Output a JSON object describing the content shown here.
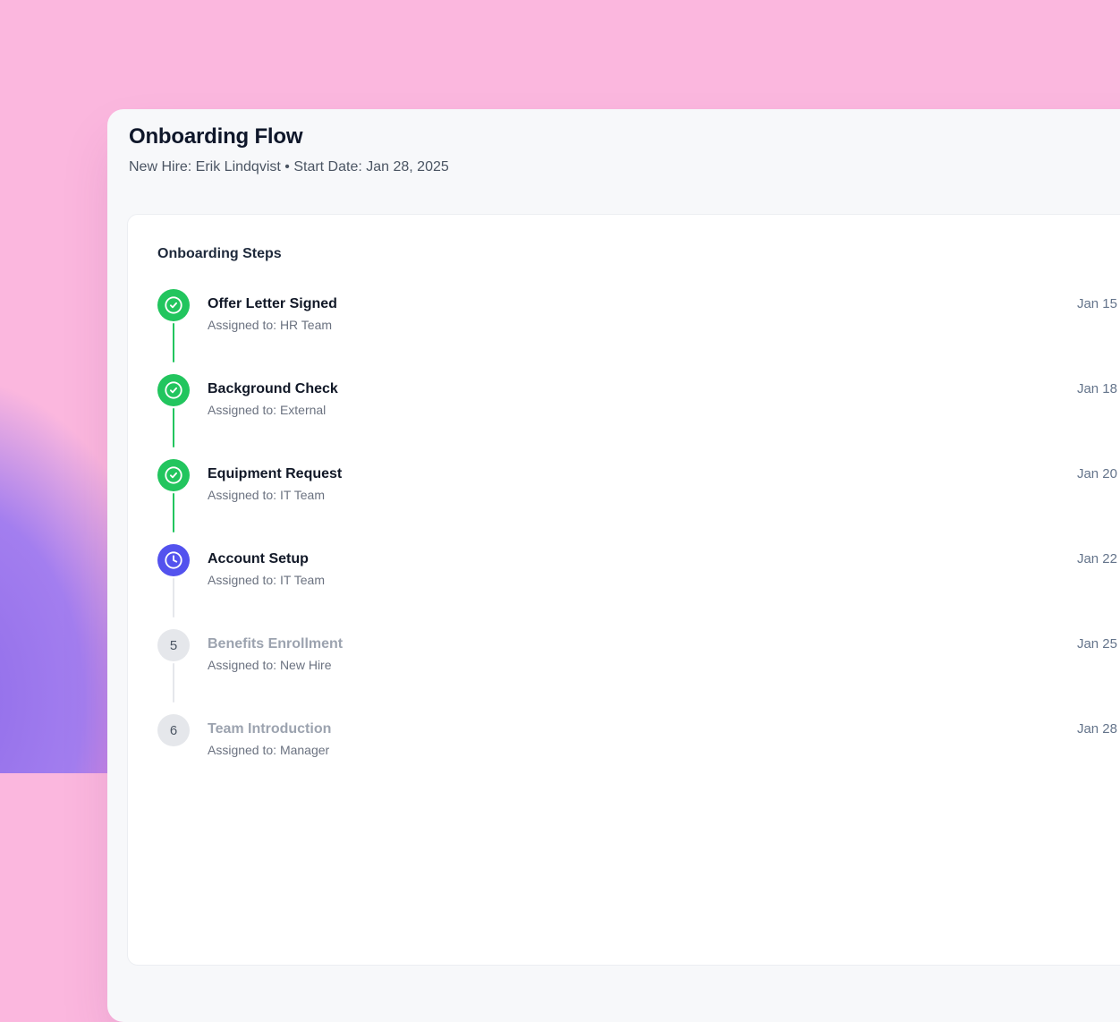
{
  "page": {
    "title": "Onboarding Flow",
    "subtitle": "New Hire: Erik Lindqvist • Start Date: Jan 28, 2025"
  },
  "card": {
    "heading": "Onboarding Steps",
    "steps": [
      {
        "title": "Offer Letter Signed",
        "assignee": "Assigned to: HR Team",
        "date": "Jan 15",
        "status": "completed"
      },
      {
        "title": "Background Check",
        "assignee": "Assigned to: External",
        "date": "Jan 18",
        "status": "completed"
      },
      {
        "title": "Equipment Request",
        "assignee": "Assigned to: IT Team",
        "date": "Jan 20",
        "status": "completed"
      },
      {
        "title": "Account Setup",
        "assignee": "Assigned to: IT Team",
        "date": "Jan 22",
        "status": "in_progress"
      },
      {
        "title": "Benefits Enrollment",
        "assignee": "Assigned to: New Hire",
        "date": "Jan 25",
        "status": "pending",
        "number": "5"
      },
      {
        "title": "Team Introduction",
        "assignee": "Assigned to: Manager",
        "date": "Jan 28",
        "status": "pending",
        "number": "6"
      }
    ]
  },
  "colors": {
    "status_completed": "#22c55e",
    "status_in_progress": "#5352ee",
    "pending_badge_bg": "#e5e7eb",
    "pending_badge_text": "#4b5563",
    "connector_pending": "#e5e7eb",
    "background_pink": "#fbb7de",
    "background_purple": "#9d7bee",
    "background_magenta": "#f26fd6"
  },
  "icons": {
    "completed": "check-circle-icon",
    "in_progress": "clock-icon",
    "pending": "step-number-badge"
  }
}
